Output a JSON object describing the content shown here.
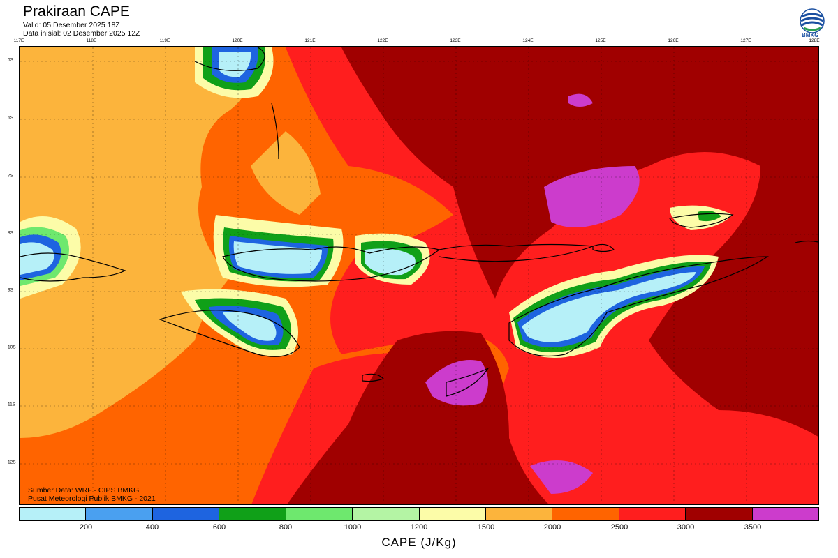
{
  "header": {
    "title": "Prakiraan CAPE",
    "valid": "Valid: 05 Desember 2025 18Z",
    "init": "Data inisial: 02 Desember 2025 12Z"
  },
  "logo": {
    "text": "BMKG"
  },
  "axes": {
    "lon_labels": [
      "117E",
      "118E",
      "119E",
      "120E",
      "121E",
      "122E",
      "123E",
      "124E",
      "125E",
      "126E",
      "127E",
      "128E"
    ],
    "lat_labels": [
      "5S",
      "6S",
      "7S",
      "8S",
      "9S",
      "10S",
      "11S",
      "12S"
    ]
  },
  "credits": {
    "source": "Sumber Data: WRF - CIPS BMKG",
    "org": "Pusat Meteorologi Publik BMKG - 2021"
  },
  "colorbar": {
    "title": "CAPE (J/Kg)",
    "ticks": [
      "200",
      "400",
      "600",
      "800",
      "1000",
      "1200",
      "1500",
      "2000",
      "2500",
      "3000",
      "3500"
    ],
    "colors": [
      "#b6f0f8",
      "#4aa0f0",
      "#1e64e0",
      "#10a018",
      "#6ee86e",
      "#b4f4a4",
      "#fcfca8",
      "#fcb43c",
      "#ff6400",
      "#ff1e1e",
      "#a00000",
      "#cc3ccc"
    ]
  }
}
